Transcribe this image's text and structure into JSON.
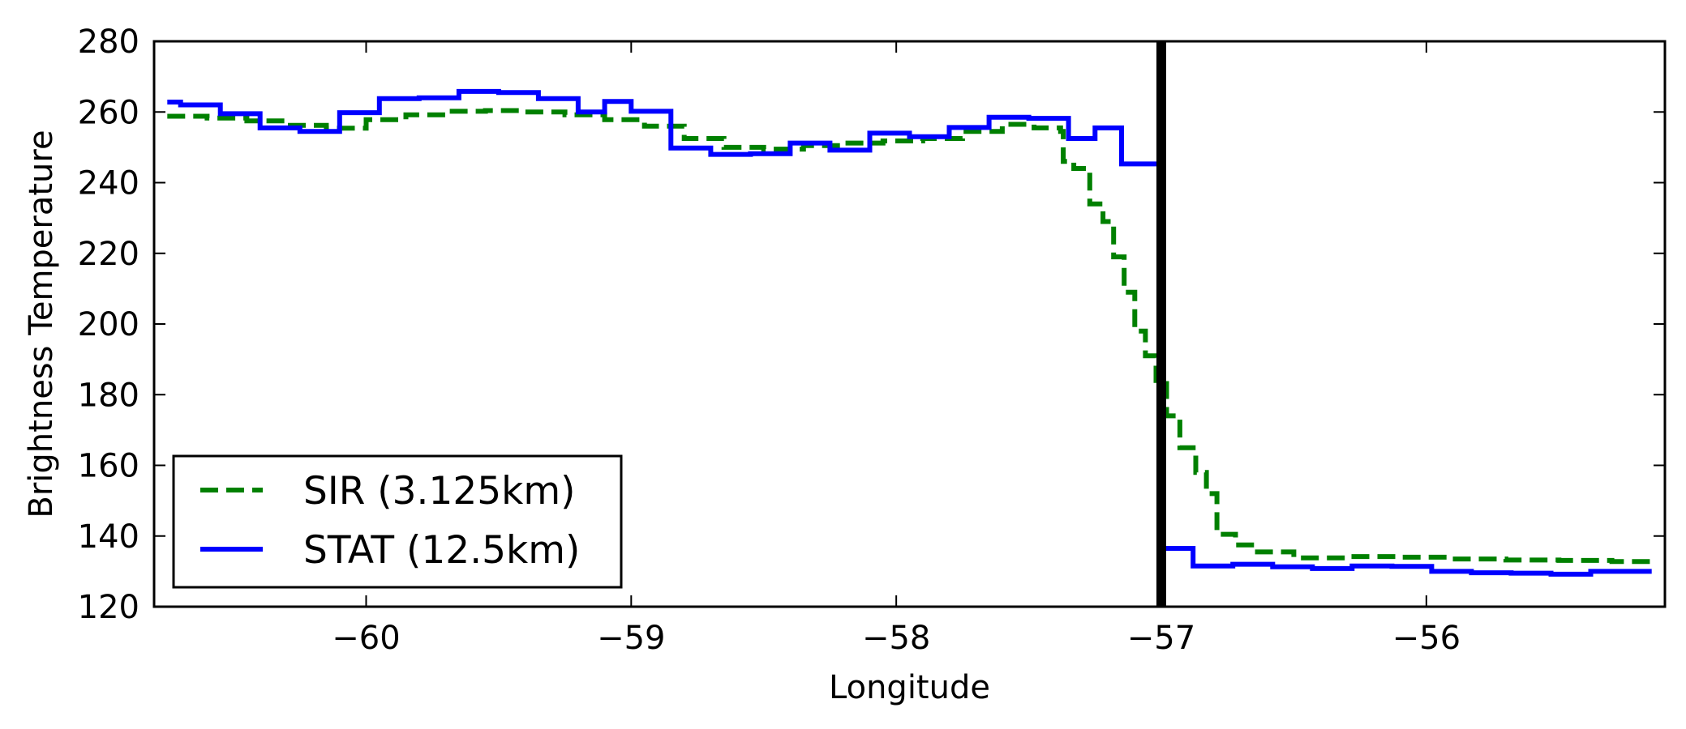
{
  "chart_data": {
    "type": "line",
    "title": "",
    "xlabel": "Longitude",
    "ylabel": "Brightness Temperature",
    "xlim": [
      -60.8,
      -55.1
    ],
    "ylim": [
      120,
      280
    ],
    "xticks": [
      -60,
      -59,
      -58,
      -57,
      -56
    ],
    "xtick_labels": [
      "−60",
      "−59",
      "−58",
      "−57",
      "−56"
    ],
    "yticks": [
      120,
      140,
      160,
      180,
      200,
      220,
      240,
      260,
      280
    ],
    "ytick_labels": [
      "120",
      "140",
      "160",
      "180",
      "200",
      "220",
      "240",
      "260",
      "280"
    ],
    "grid": false,
    "legend_position": "lower-left",
    "vertical_line": {
      "x": -57.0,
      "color": "#000000"
    },
    "series": [
      {
        "name": "SIR (3.125km)",
        "color": "#008000",
        "style": "dashed-step",
        "points": [
          [
            -60.75,
            258.8
          ],
          [
            -60.6,
            258.3
          ],
          [
            -60.45,
            257.5
          ],
          [
            -60.3,
            256.2
          ],
          [
            -60.15,
            255.4
          ],
          [
            -60.0,
            257.8
          ],
          [
            -59.85,
            259.2
          ],
          [
            -59.7,
            260.2
          ],
          [
            -59.55,
            260.4
          ],
          [
            -59.4,
            260.0
          ],
          [
            -59.25,
            259.2
          ],
          [
            -59.1,
            257.8
          ],
          [
            -58.95,
            256.0
          ],
          [
            -58.8,
            252.5
          ],
          [
            -58.65,
            250.0
          ],
          [
            -58.5,
            249.5
          ],
          [
            -58.35,
            250.5
          ],
          [
            -58.2,
            251.2
          ],
          [
            -58.05,
            251.8
          ],
          [
            -57.9,
            252.5
          ],
          [
            -57.75,
            254.5
          ],
          [
            -57.6,
            256.5
          ],
          [
            -57.48,
            255.5
          ],
          [
            -57.38,
            254.5
          ],
          [
            -57.37,
            246.0
          ],
          [
            -57.33,
            244.0
          ],
          [
            -57.27,
            234.0
          ],
          [
            -57.22,
            229.0
          ],
          [
            -57.18,
            219.0
          ],
          [
            -57.14,
            209.0
          ],
          [
            -57.1,
            198.0
          ],
          [
            -57.06,
            191.0
          ],
          [
            -57.02,
            184.0
          ],
          [
            -56.98,
            174.0
          ],
          [
            -56.93,
            165.0
          ],
          [
            -56.87,
            158.0
          ],
          [
            -56.83,
            152.0
          ],
          [
            -56.79,
            140.5
          ],
          [
            -56.72,
            137.5
          ],
          [
            -56.65,
            135.5
          ],
          [
            -56.5,
            133.8
          ],
          [
            -56.3,
            134.2
          ],
          [
            -56.1,
            134.0
          ],
          [
            -55.9,
            133.5
          ],
          [
            -55.7,
            133.2
          ],
          [
            -55.5,
            133.1
          ],
          [
            -55.3,
            132.8
          ],
          [
            -55.15,
            132.3
          ]
        ]
      },
      {
        "name": "STAT (12.5km)",
        "color": "#0000ff",
        "style": "solid-step",
        "points": [
          [
            -60.75,
            262.8
          ],
          [
            -60.7,
            262.0
          ],
          [
            -60.55,
            259.5
          ],
          [
            -60.4,
            255.5
          ],
          [
            -60.25,
            254.5
          ],
          [
            -60.1,
            259.8
          ],
          [
            -59.95,
            263.8
          ],
          [
            -59.8,
            264.0
          ],
          [
            -59.65,
            265.8
          ],
          [
            -59.5,
            265.5
          ],
          [
            -59.35,
            263.8
          ],
          [
            -59.2,
            260.0
          ],
          [
            -59.1,
            263.0
          ],
          [
            -59.0,
            260.2
          ],
          [
            -58.85,
            249.8
          ],
          [
            -58.7,
            248.0
          ],
          [
            -58.55,
            248.2
          ],
          [
            -58.4,
            251.2
          ],
          [
            -58.25,
            249.2
          ],
          [
            -58.1,
            254.0
          ],
          [
            -57.95,
            253.0
          ],
          [
            -57.8,
            255.6
          ],
          [
            -57.65,
            258.5
          ],
          [
            -57.5,
            258.2
          ],
          [
            -57.35,
            252.5
          ],
          [
            -57.25,
            255.5
          ],
          [
            -57.15,
            245.3
          ],
          [
            -57.0,
            136.5
          ],
          [
            -56.88,
            131.5
          ],
          [
            -56.73,
            132.0
          ],
          [
            -56.58,
            131.3
          ],
          [
            -56.43,
            130.8
          ],
          [
            -56.28,
            131.5
          ],
          [
            -56.13,
            131.4
          ],
          [
            -55.98,
            130.0
          ],
          [
            -55.83,
            129.6
          ],
          [
            -55.68,
            129.5
          ],
          [
            -55.53,
            129.2
          ],
          [
            -55.38,
            130.0
          ],
          [
            -55.23,
            130.0
          ],
          [
            -55.15,
            130.0
          ]
        ]
      }
    ]
  }
}
